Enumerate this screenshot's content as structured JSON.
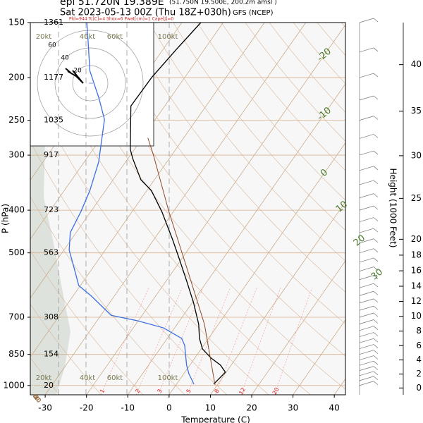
{
  "chart_data": {
    "type": "skewt",
    "title_lines": [
      "epi 51.720N 19.389E",
      "(51.750N 19.500E, 200.2m amsl )",
      "Sat 2023-05-13 00Z (Thu 18Z+030h)",
      "GFS (NCEP)"
    ],
    "indices": "Pld=944 Tc[C]=4 Shox=6 Pwat[cm]=1 Cape[J]=0",
    "xlabel": "Temperature (C)",
    "ylabel": "P (hPa)",
    "y2label": "Height (1000 Feet)",
    "xlim": [
      -33.6,
      42.7
    ],
    "xticks": [
      -30,
      -20,
      -10,
      0,
      10,
      20,
      30,
      40
    ],
    "ylim": [
      1050,
      150
    ],
    "log_y": true,
    "yticks": [
      1000,
      850,
      700,
      500,
      400,
      300,
      250,
      200,
      150
    ],
    "height_labels": [
      20,
      154,
      308,
      563,
      723,
      917,
      1035,
      1177,
      1361
    ],
    "y2ticks": [
      0,
      2,
      4,
      6,
      8,
      10,
      12,
      14,
      16,
      18,
      20,
      25,
      30,
      35,
      40
    ],
    "series": [
      {
        "color": "#000000",
        "pressure": [
          993,
          933,
          899,
          867,
          826,
          782,
          726,
          650,
          582,
          521,
          467,
          403,
          361,
          341,
          305,
          291,
          232,
          200,
          173,
          150
        ],
        "values": [
          9.0,
          9.8,
          7.4,
          4.0,
          0.3,
          -2.2,
          -4.8,
          -9.6,
          -14.8,
          -20.1,
          -25.4,
          -32.8,
          -38.9,
          -43.3,
          -48.9,
          -51.0,
          -58.2,
          -58.0,
          -56.8,
          -55.4
        ]
      },
      {
        "color": "#3d6fe0",
        "pressure": [
          993,
          940,
          899,
          811,
          782,
          740,
          713,
          693,
          627,
          593,
          541,
          493,
          450,
          403,
          361,
          311,
          249,
          223,
          193,
          166,
          150
        ],
        "values": [
          4.2,
          1.2,
          -0.8,
          -4.6,
          -6.5,
          -12.7,
          -20.2,
          -27.5,
          -35.5,
          -40.4,
          -44.5,
          -48.7,
          -51.4,
          -52.4,
          -53.8,
          -56.5,
          -62.3,
          -67.2,
          -74.1,
          -79.4,
          -83.0
        ]
      },
      {
        "color": "#8b4a2b",
        "pressure": [
          996,
          726,
          541,
          403,
          300,
          274
        ],
        "values": [
          9.4,
          -3.4,
          -17.2,
          -31.1,
          -44.4,
          -48.7
        ]
      }
    ],
    "isotherm_labels": [
      -20,
      -10,
      0,
      10,
      20,
      30
    ],
    "adiabat_labels": [
      10,
      0,
      -10,
      -20,
      -30
    ],
    "mixing_ratio_labels": [
      1,
      2,
      3,
      5,
      8,
      12,
      20
    ],
    "wind_scale_labels": [
      "20kt",
      "40kt",
      "60kt",
      "100kt"
    ],
    "hodograph_ring_labels": [
      20,
      40,
      60
    ]
  }
}
